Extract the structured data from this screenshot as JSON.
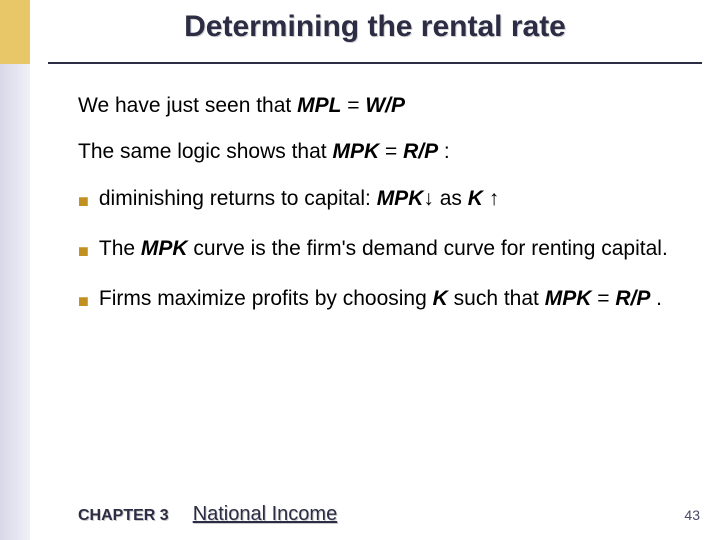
{
  "colors": {
    "accent_gold": "#e8c768",
    "accent_lav": "#d8d8e8",
    "title_color": "#2c2c44",
    "bullet_color": "#c09020",
    "text_color": "#000000"
  },
  "title": "Determining the rental rate",
  "line1_a": "We have just seen that  ",
  "line1_b": "MPL",
  "line1_c": " = ",
  "line1_d": "W/P",
  "line2_a": "The same logic shows that  ",
  "line2_b": "MPK",
  "line2_c": " = ",
  "line2_d": "R/P",
  "line2_e": " :",
  "b1_a": "diminishing returns to capital:  ",
  "b1_b": "MPK",
  "b1_c": "↓ as ",
  "b1_d": "K",
  "b1_e": " ↑",
  "b2_a": "The ",
  "b2_b": "MPK",
  "b2_c": " curve is the firm's demand curve for renting capital.",
  "b3_a": "Firms maximize profits by choosing ",
  "b3_b": "K",
  "b3_c": " such that ",
  "b3_d": "MPK",
  "b3_e": " = ",
  "b3_f": "R/P",
  "b3_g": " .",
  "footer": {
    "chapter": "CHAPTER 3",
    "title": "National Income",
    "page": "43"
  }
}
